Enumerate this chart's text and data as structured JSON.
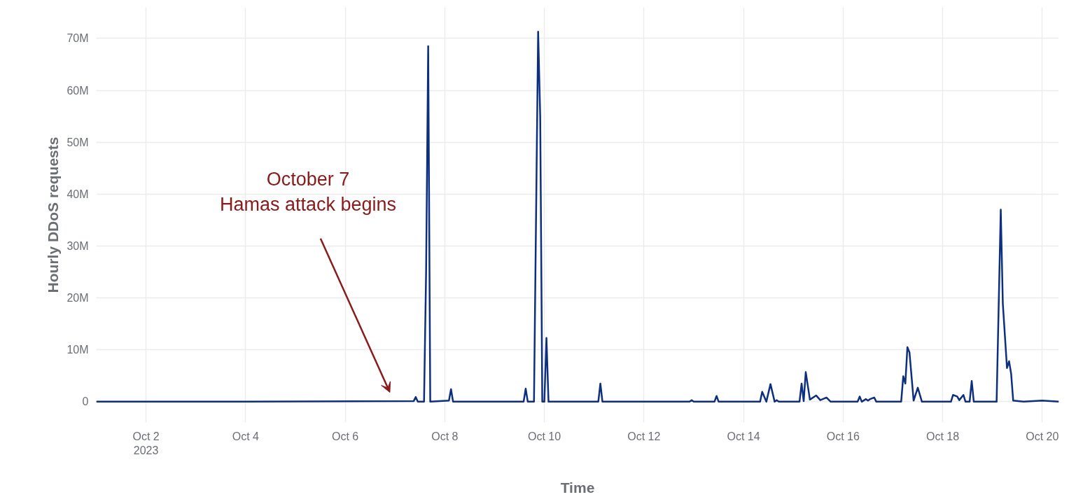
{
  "chart_data": {
    "type": "line",
    "xlabel": "Time",
    "ylabel": "Hourly DDoS requests",
    "x": [
      "2023-10-01T00:00",
      "2023-10-04T00:00",
      "2023-10-07T09:00",
      "2023-10-07T10:00",
      "2023-10-07T11:00",
      "2023-10-07T14:00",
      "2023-10-07T15:00",
      "2023-10-07T16:00",
      "2023-10-07T17:00",
      "2023-10-08T02:00",
      "2023-10-08T03:00",
      "2023-10-08T04:00",
      "2023-10-09T14:00",
      "2023-10-09T15:00",
      "2023-10-09T16:00",
      "2023-10-09T19:00",
      "2023-10-09T21:00",
      "2023-10-09T22:00",
      "2023-10-09T23:00",
      "2023-10-10T00:00",
      "2023-10-10T01:00",
      "2023-10-10T02:00",
      "2023-10-11T02:00",
      "2023-10-11T03:00",
      "2023-10-11T04:00",
      "2023-10-12T22:00",
      "2023-10-12T23:00",
      "2023-10-13T00:00",
      "2023-10-13T10:00",
      "2023-10-13T11:00",
      "2023-10-13T12:00",
      "2023-10-14T08:00",
      "2023-10-14T09:00",
      "2023-10-14T11:00",
      "2023-10-14T13:00",
      "2023-10-14T15:00",
      "2023-10-14T16:00",
      "2023-10-14T17:00",
      "2023-10-15T03:00",
      "2023-10-15T04:00",
      "2023-10-15T05:00",
      "2023-10-15T06:00",
      "2023-10-15T08:00",
      "2023-10-15T11:00",
      "2023-10-15T13:00",
      "2023-10-15T16:00",
      "2023-10-15T18:00",
      "2023-10-16T07:00",
      "2023-10-16T08:00",
      "2023-10-16T09:00",
      "2023-10-16T11:00",
      "2023-10-16T12:00",
      "2023-10-16T13:00",
      "2023-10-16T15:00",
      "2023-10-16T16:00",
      "2023-10-17T04:00",
      "2023-10-17T05:00",
      "2023-10-17T06:00",
      "2023-10-17T07:00",
      "2023-10-17T08:00",
      "2023-10-17T10:00",
      "2023-10-17T12:00",
      "2023-10-17T14:00",
      "2023-10-18T04:00",
      "2023-10-18T05:00",
      "2023-10-18T07:00",
      "2023-10-18T08:00",
      "2023-10-18T10:00",
      "2023-10-18T11:00",
      "2023-10-18T13:00",
      "2023-10-18T14:00",
      "2023-10-18T15:00",
      "2023-10-19T02:00",
      "2023-10-19T04:00",
      "2023-10-19T05:00",
      "2023-10-19T07:00",
      "2023-10-19T08:00",
      "2023-10-19T09:00",
      "2023-10-19T10:00",
      "2023-10-19T15:00",
      "2023-10-20T00:00",
      "2023-10-20T08:00"
    ],
    "series": [
      {
        "color": "#0d2f82",
        "values": [
          0,
          0,
          100000,
          900000,
          0,
          0,
          25000000,
          68500000,
          0,
          200000,
          2400000,
          0,
          0,
          2500000,
          0,
          0,
          71300000,
          55000000,
          0,
          0,
          12300000,
          0,
          0,
          3500000,
          0,
          0,
          300000,
          0,
          0,
          1100000,
          0,
          0,
          1900000,
          0,
          3400000,
          0,
          300000,
          0,
          0,
          3500000,
          100000,
          5700000,
          400000,
          1200000,
          300000,
          800000,
          0,
          0,
          1000000,
          0,
          500000,
          200000,
          500000,
          800000,
          0,
          0,
          4900000,
          3500000,
          10500000,
          9500000,
          200000,
          2700000,
          0,
          0,
          1300000,
          1000000,
          300000,
          1300000,
          0,
          0,
          4000000,
          0,
          0,
          37000000,
          18900000,
          6500000,
          7800000,
          5400000,
          200000,
          0,
          200000,
          0
        ]
      }
    ],
    "xlim": [
      "2023-10-01T00:00",
      "2023-10-20T08:00"
    ],
    "xticks": [
      {
        "value": "2023-10-02",
        "label": "Oct 2\n2023"
      },
      {
        "value": "2023-10-04",
        "label": "Oct 4"
      },
      {
        "value": "2023-10-06",
        "label": "Oct 6"
      },
      {
        "value": "2023-10-08",
        "label": "Oct 8"
      },
      {
        "value": "2023-10-10",
        "label": "Oct 10"
      },
      {
        "value": "2023-10-12",
        "label": "Oct 12"
      },
      {
        "value": "2023-10-14",
        "label": "Oct 14"
      },
      {
        "value": "2023-10-16",
        "label": "Oct 16"
      },
      {
        "value": "2023-10-18",
        "label": "Oct 18"
      },
      {
        "value": "2023-10-20",
        "label": "Oct 20"
      }
    ],
    "ylim": [
      -4000000,
      76000000
    ],
    "yticks": [
      0,
      {
        "value": 10000000,
        "label": "10M"
      },
      {
        "value": 20000000,
        "label": "20M"
      },
      {
        "value": 30000000,
        "label": "30M"
      },
      {
        "value": 40000000,
        "label": "40M"
      },
      {
        "value": 50000000,
        "label": "50M"
      },
      {
        "value": 60000000,
        "label": "60M"
      },
      {
        "value": 70000000,
        "label": "70M"
      }
    ],
    "grid": true,
    "line_style": "solid",
    "annotations": [
      "October 7\nHamas attack begins"
    ]
  }
}
